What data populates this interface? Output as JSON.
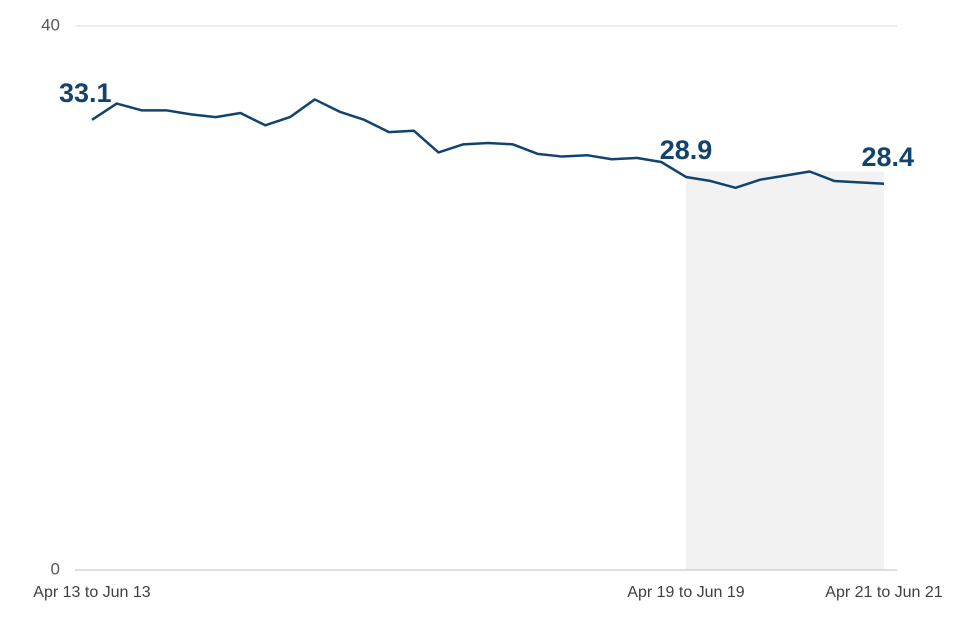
{
  "chart_data": {
    "type": "line",
    "categories": [
      "Apr 13 to Jun 13",
      null,
      null,
      null,
      null,
      null,
      null,
      null,
      null,
      null,
      null,
      null,
      null,
      null,
      null,
      null,
      null,
      null,
      null,
      null,
      null,
      null,
      null,
      null,
      "Apr 19 to Jun 19",
      null,
      null,
      null,
      null,
      null,
      null,
      null,
      "Apr 21 to Jun 21"
    ],
    "series": [
      {
        "color": "#12436d",
        "values": [
          33.1,
          34.3,
          33.8,
          33.8,
          33.5,
          33.3,
          33.6,
          32.7,
          33.3,
          34.6,
          33.7,
          33.1,
          32.2,
          32.3,
          30.7,
          31.3,
          31.4,
          31.3,
          30.6,
          30.4,
          30.5,
          30.2,
          30.3,
          30.0,
          28.9,
          28.6,
          28.1,
          28.7,
          29.0,
          29.3,
          28.6,
          28.5,
          28.4
        ]
      }
    ],
    "labeled_points": [
      0,
      24,
      32
    ],
    "highlight": {
      "start": 24,
      "end": 32,
      "top": 29.3,
      "color": "#f2f2f2"
    },
    "ylim": [
      0,
      40
    ],
    "yticks": [
      0,
      40
    ],
    "grid": true
  }
}
